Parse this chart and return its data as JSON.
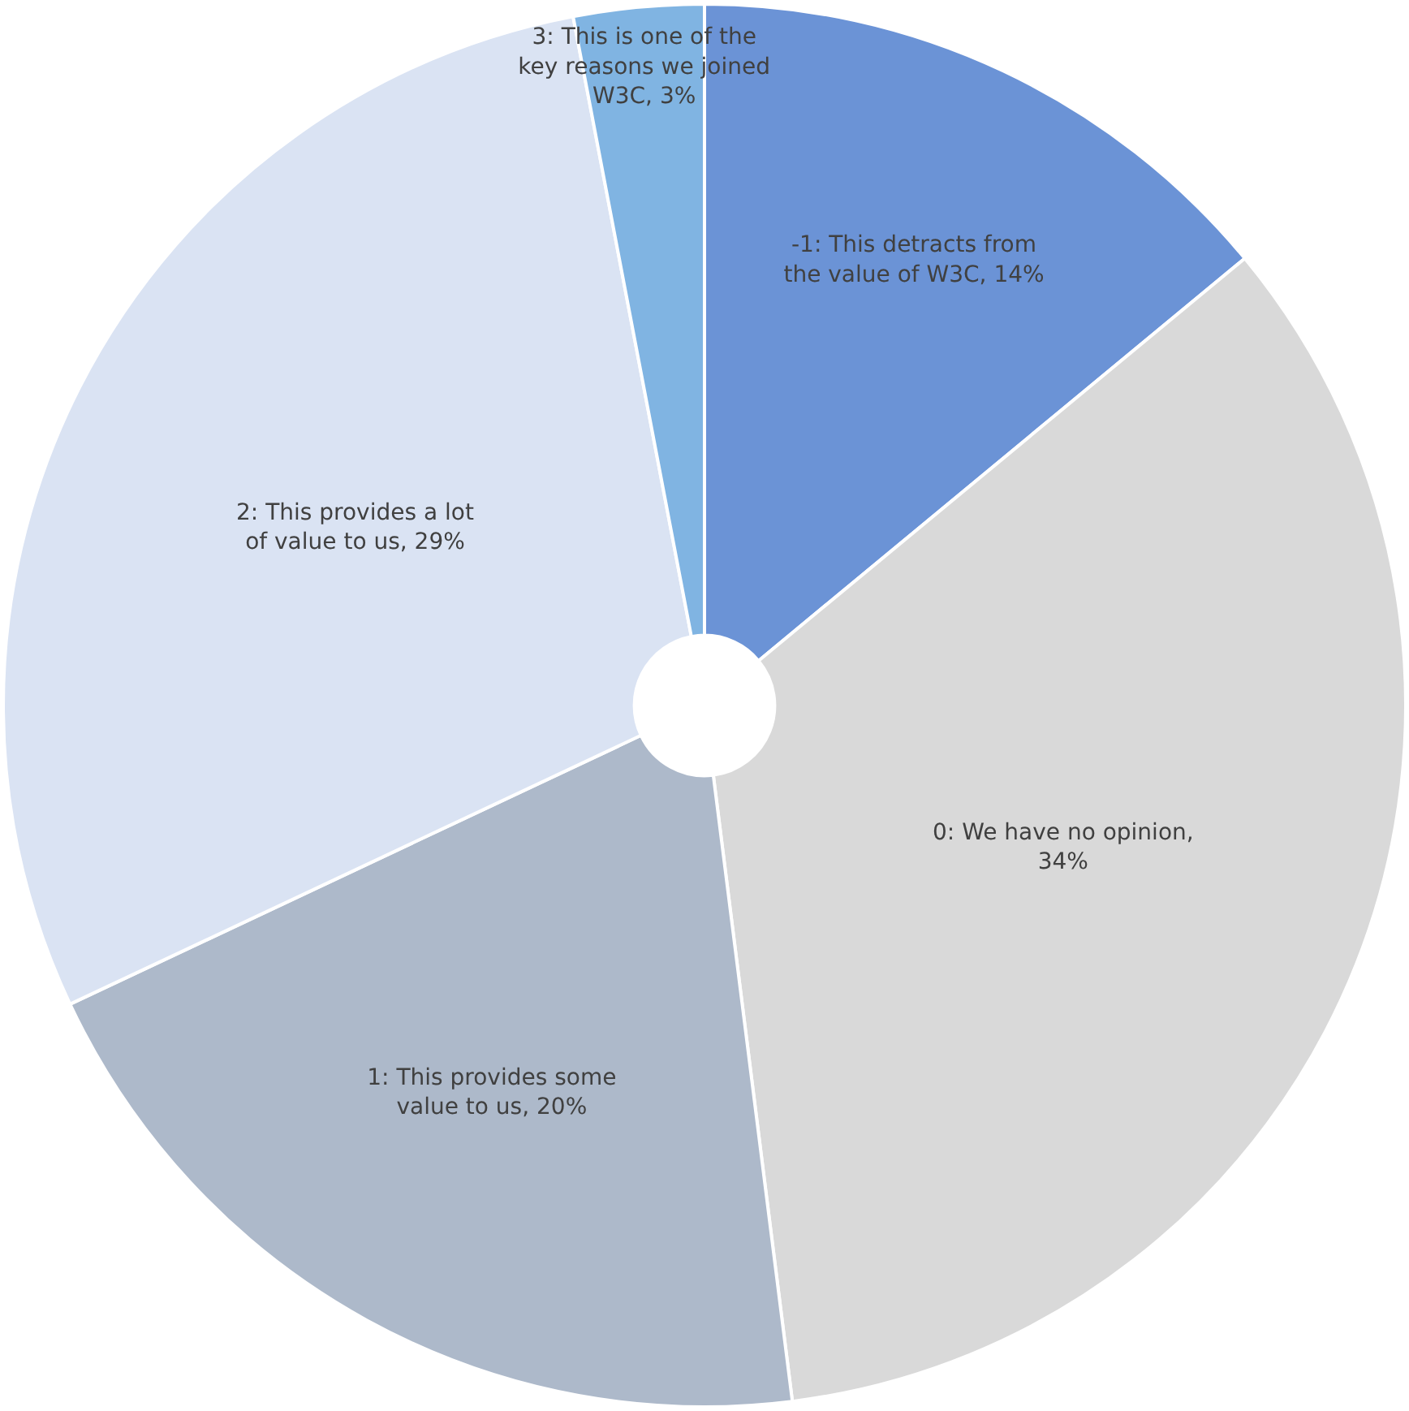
{
  "chart_data": {
    "type": "pie",
    "categories": [
      "-1: This detracts from the value of W3C, 14%",
      "0: We have no opinion, 34%",
      "1: This provides some value to us, 20%",
      "2: This provides a lot of value to us, 29%",
      "3: This is one of the key reasons we joined W3C, 3%"
    ],
    "values": [
      14,
      34,
      20,
      29,
      3
    ],
    "colors": [
      "#6b93d6",
      "#d9d9d9",
      "#adb9ca",
      "#dae3f3",
      "#80b4e2"
    ],
    "legend": false
  }
}
